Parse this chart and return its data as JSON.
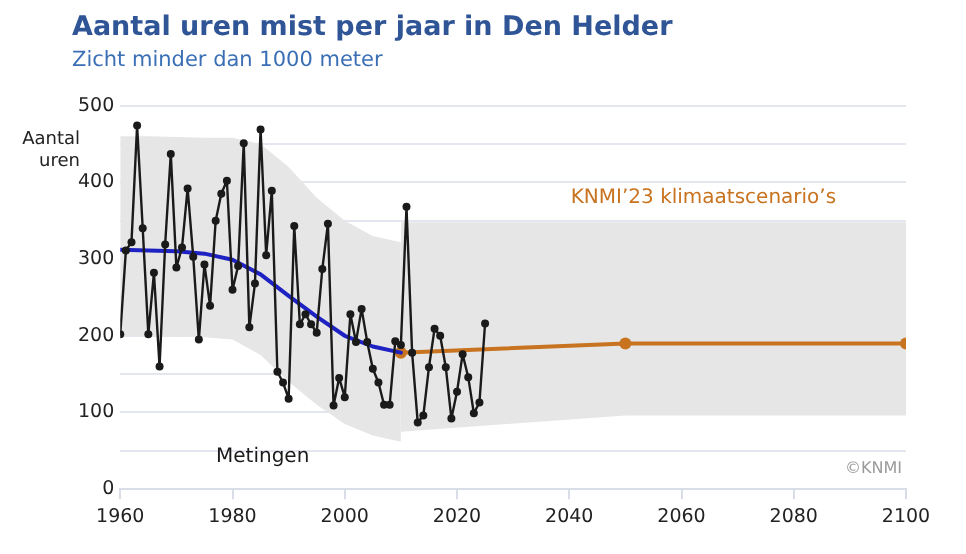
{
  "chart_data": {
    "type": "line",
    "title": "Aantal uren mist per jaar in Den Helder",
    "subtitle": "Zicht minder dan 1000 meter",
    "ylabel": "Aantal\nuren",
    "xlim": [
      1960,
      2100
    ],
    "xticks": [
      1960,
      1980,
      2000,
      2020,
      2040,
      2060,
      2080,
      2100
    ],
    "ylim": [
      0,
      500
    ],
    "yticks": [
      0,
      {
        "value": 50,
        "label": null
      },
      100,
      {
        "value": 150,
        "label": null
      },
      200,
      {
        "value": 250,
        "label": null
      },
      300,
      {
        "value": 350,
        "label": null
      },
      400,
      {
        "value": 450,
        "label": null
      },
      500
    ],
    "grid": "y",
    "legend": false,
    "line_style": "solid",
    "series": [
      {
        "name": "Metingen",
        "color": "#1a1a1a",
        "marker": "circle",
        "x": [
          1960,
          1961,
          1962,
          1963,
          1964,
          1965,
          1966,
          1967,
          1968,
          1969,
          1970,
          1971,
          1972,
          1973,
          1974,
          1975,
          1976,
          1977,
          1978,
          1979,
          1980,
          1981,
          1982,
          1983,
          1984,
          1985,
          1986,
          1987,
          1988,
          1989,
          1990,
          1991,
          1992,
          1993,
          1994,
          1995,
          1996,
          1997,
          1998,
          1999,
          2000,
          2001,
          2002,
          2003,
          2004,
          2005,
          2006,
          2007,
          2008,
          2009,
          2010,
          2011,
          2012,
          2013,
          2014,
          2015,
          2016,
          2017,
          2018,
          2019,
          2020,
          2021,
          2022,
          2023,
          2024,
          2025
        ],
        "values": [
          202,
          311,
          322,
          474,
          340,
          202,
          282,
          160,
          319,
          437,
          289,
          315,
          392,
          303,
          195,
          293,
          239,
          350,
          385,
          402,
          260,
          291,
          451,
          211,
          268,
          469,
          305,
          389,
          153,
          139,
          118,
          343,
          215,
          228,
          215,
          204,
          287,
          346,
          109,
          145,
          120,
          228,
          192,
          235,
          192,
          157,
          139,
          110,
          110,
          193,
          188,
          368,
          178,
          87,
          96,
          159,
          209,
          200,
          159,
          92,
          127,
          176,
          146,
          99,
          113,
          216
        ]
      },
      {
        "color": "#1f22c2",
        "marker": "none",
        "x": [
          1960,
          1965,
          1970,
          1975,
          1980,
          1985,
          1990,
          1995,
          2000,
          2005,
          2010
        ],
        "values": [
          312,
          311,
          310,
          307,
          299,
          280,
          252,
          225,
          200,
          186,
          178
        ],
        "lower": [
          200,
          199,
          199,
          198,
          195,
          175,
          140,
          110,
          85,
          70,
          62
        ],
        "upper": [
          460,
          460,
          459,
          458,
          458,
          450,
          420,
          380,
          350,
          330,
          322
        ]
      },
      {
        "name": "KNMI’23 klimaatscenario’s",
        "color": "#c8731f",
        "marker": "circle",
        "x": [
          2010,
          2050,
          2100
        ],
        "values": [
          178,
          190,
          190
        ],
        "lower": [
          75,
          96,
          96
        ],
        "upper": [
          348,
          348,
          348
        ]
      }
    ],
    "annotations": [
      "©KNMI"
    ]
  }
}
